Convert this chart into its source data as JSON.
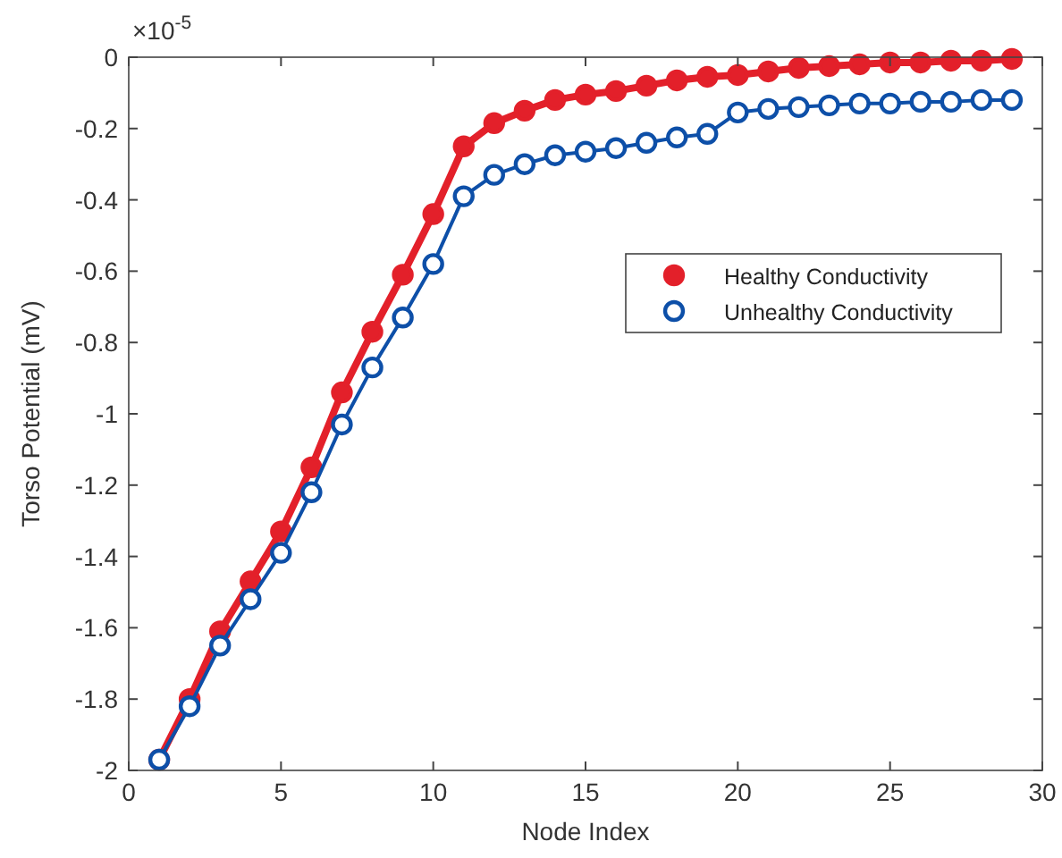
{
  "chart_data": {
    "type": "line",
    "xlabel": "Node Index",
    "ylabel": "Torso Potential (mV)",
    "annotations": [
      "×10$^{-5}$"
    ],
    "x": [
      1,
      2,
      3,
      4,
      5,
      6,
      7,
      8,
      9,
      10,
      11,
      12,
      13,
      14,
      15,
      16,
      17,
      18,
      19,
      20,
      21,
      22,
      23,
      24,
      25,
      26,
      27,
      28,
      29
    ],
    "series": [
      {
        "name": "Healthy Conductivity",
        "color": "#e3202a",
        "values": [
          -1.97,
          -1.8,
          -1.61,
          -1.47,
          -1.33,
          -1.15,
          -0.94,
          -0.77,
          -0.61,
          -0.44,
          -0.25,
          -0.185,
          -0.15,
          -0.12,
          -0.105,
          -0.095,
          -0.08,
          -0.065,
          -0.055,
          -0.05,
          -0.04,
          -0.03,
          -0.025,
          -0.02,
          -0.015,
          -0.015,
          -0.01,
          -0.01,
          -0.005
        ]
      },
      {
        "name": "Unhealthy Conductivity",
        "color": "#0d4fa8",
        "values": [
          -1.97,
          -1.82,
          -1.65,
          -1.52,
          -1.39,
          -1.22,
          -1.03,
          -0.87,
          -0.73,
          -0.58,
          -0.39,
          -0.33,
          -0.3,
          -0.275,
          -0.265,
          -0.255,
          -0.24,
          -0.225,
          -0.215,
          -0.155,
          -0.145,
          -0.14,
          -0.135,
          -0.13,
          -0.13,
          -0.125,
          -0.125,
          -0.12,
          -0.12
        ]
      }
    ],
    "xlim": [
      0,
      30
    ],
    "xticks": [
      0,
      5,
      10,
      15,
      20,
      25,
      30
    ],
    "ylim": [
      -2,
      0
    ],
    "yticks": [
      -2,
      -1.8,
      -1.6,
      -1.4,
      -1.2,
      -1,
      -0.8,
      -0.6,
      -0.4,
      -0.2,
      0
    ],
    "marker": "circle",
    "line_style": "solid",
    "grid": false,
    "legend": "right"
  }
}
